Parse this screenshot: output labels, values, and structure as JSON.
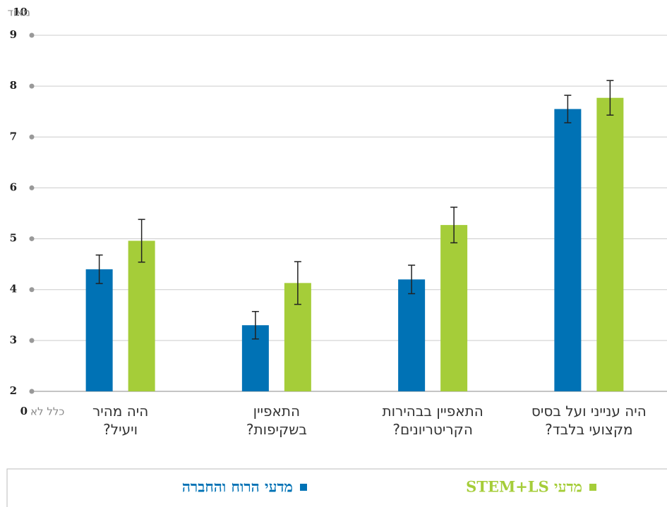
{
  "chart_data": {
    "type": "bar",
    "categories": [
      "היה מהיר\nויעיל?",
      "התאפיין\nבשקיפות?",
      "התאפיין בבהירות\nהקריטריונים?",
      "היה ענייני ועל בסיס\nמקצועי בלבד?"
    ],
    "series": [
      {
        "name": "מדעי הרוח והחברה",
        "color": "#0072b5",
        "values": [
          4.4,
          3.3,
          4.2,
          7.55
        ],
        "errors": [
          0.28,
          0.27,
          0.28,
          0.27
        ]
      },
      {
        "name": "מדעי STEM+LS",
        "color": "#a5cd39",
        "values": [
          4.96,
          4.13,
          5.27,
          7.77
        ],
        "errors": [
          0.42,
          0.42,
          0.35,
          0.34
        ]
      }
    ],
    "ylim": [
      2,
      9
    ],
    "yticks": [
      2,
      3,
      4,
      5,
      6,
      7,
      8,
      9
    ],
    "grid": true,
    "y_top_number": "10",
    "y_top_text": "מאוד",
    "y_bottom_number": "0",
    "y_bottom_text": "כלל לא"
  }
}
